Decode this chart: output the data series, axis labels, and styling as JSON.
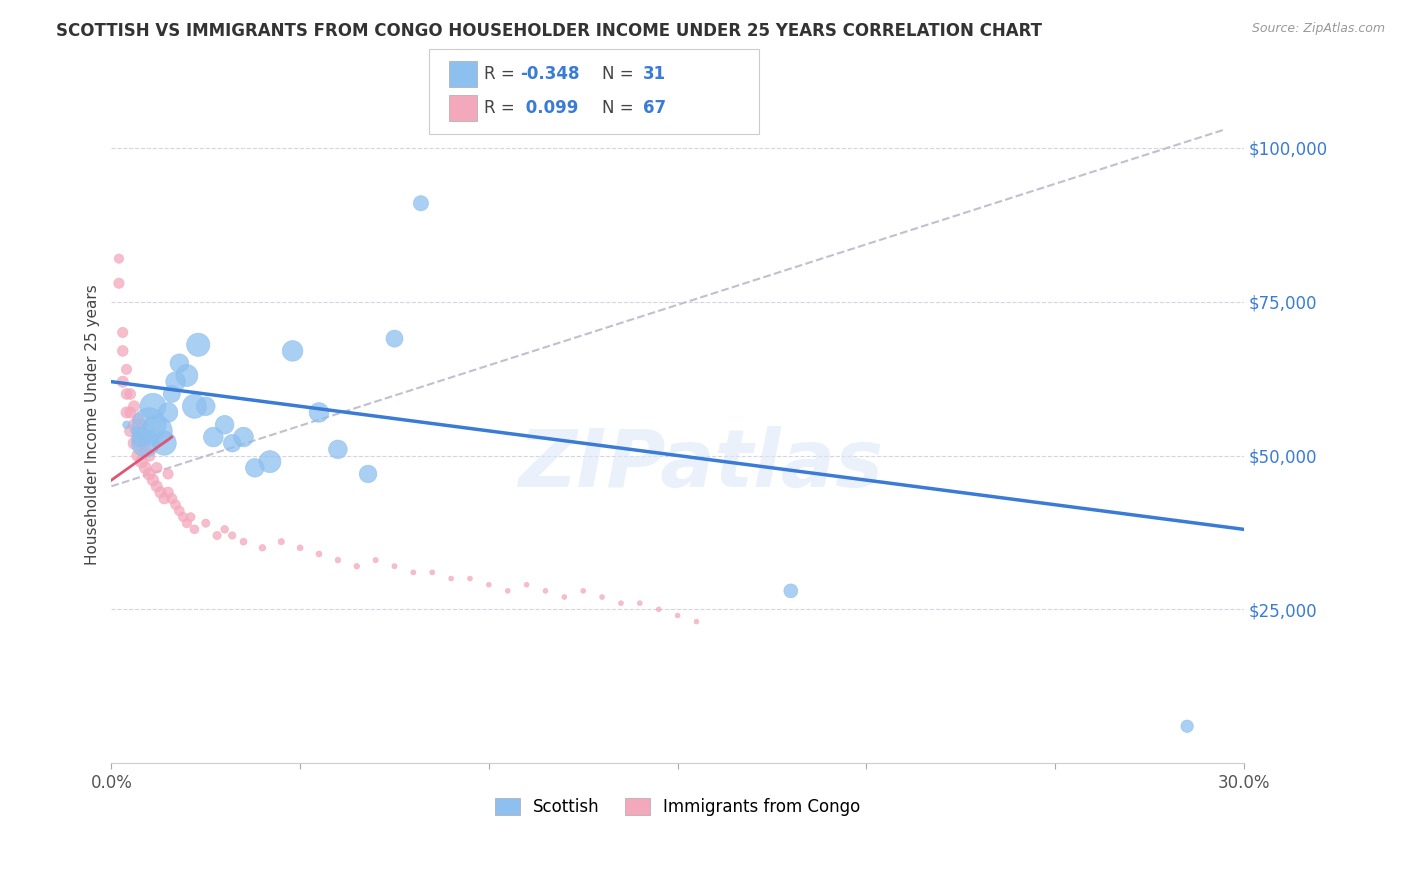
{
  "title": "SCOTTISH VS IMMIGRANTS FROM CONGO HOUSEHOLDER INCOME UNDER 25 YEARS CORRELATION CHART",
  "source": "Source: ZipAtlas.com",
  "ylabel": "Householder Income Under 25 years",
  "ytick_labels": [
    "$25,000",
    "$50,000",
    "$75,000",
    "$100,000"
  ],
  "ytick_values": [
    25000,
    50000,
    75000,
    100000
  ],
  "xlim": [
    0.0,
    0.3
  ],
  "ylim": [
    0,
    110000
  ],
  "watermark": "ZIPatlas",
  "scottish_color": "#8dbfef",
  "congo_color": "#f4a8bc",
  "scottish_line_color": "#3a7bd5",
  "congo_line_color": "#e05575",
  "dashed_line_color": "#c0c0d0",
  "scottish_scatter_x": [
    0.004,
    0.006,
    0.008,
    0.009,
    0.01,
    0.011,
    0.012,
    0.014,
    0.015,
    0.016,
    0.017,
    0.018,
    0.02,
    0.022,
    0.023,
    0.025,
    0.027,
    0.03,
    0.032,
    0.035,
    0.038,
    0.042,
    0.048,
    0.055,
    0.06,
    0.068,
    0.075,
    0.082,
    0.18,
    0.285
  ],
  "scottish_scatter_y": [
    55000,
    54000,
    53000,
    52000,
    55000,
    58000,
    54000,
    52000,
    57000,
    60000,
    62000,
    65000,
    63000,
    58000,
    68000,
    58000,
    53000,
    55000,
    52000,
    53000,
    48000,
    49000,
    67000,
    57000,
    51000,
    47000,
    69000,
    91000,
    28000,
    6000
  ],
  "scottish_scatter_size": [
    30,
    25,
    200,
    400,
    600,
    350,
    500,
    300,
    200,
    150,
    200,
    180,
    250,
    300,
    280,
    180,
    200,
    180,
    160,
    200,
    180,
    250,
    220,
    200,
    180,
    160,
    150,
    120,
    100,
    80
  ],
  "congo_scatter_x": [
    0.002,
    0.002,
    0.003,
    0.003,
    0.003,
    0.004,
    0.004,
    0.004,
    0.005,
    0.005,
    0.005,
    0.006,
    0.006,
    0.006,
    0.007,
    0.007,
    0.007,
    0.008,
    0.008,
    0.008,
    0.009,
    0.009,
    0.01,
    0.01,
    0.011,
    0.012,
    0.012,
    0.013,
    0.014,
    0.015,
    0.015,
    0.016,
    0.017,
    0.018,
    0.019,
    0.02,
    0.021,
    0.022,
    0.025,
    0.028,
    0.03,
    0.032,
    0.035,
    0.04,
    0.045,
    0.05,
    0.055,
    0.06,
    0.065,
    0.07,
    0.075,
    0.08,
    0.085,
    0.09,
    0.095,
    0.1,
    0.105,
    0.11,
    0.115,
    0.12,
    0.125,
    0.13,
    0.135,
    0.14,
    0.145,
    0.15,
    0.155
  ],
  "congo_scatter_y": [
    78000,
    82000,
    62000,
    67000,
    70000,
    57000,
    60000,
    64000,
    54000,
    57000,
    60000,
    52000,
    55000,
    58000,
    50000,
    53000,
    56000,
    49000,
    52000,
    55000,
    48000,
    51000,
    47000,
    50000,
    46000,
    45000,
    48000,
    44000,
    43000,
    44000,
    47000,
    43000,
    42000,
    41000,
    40000,
    39000,
    40000,
    38000,
    39000,
    37000,
    38000,
    37000,
    36000,
    35000,
    36000,
    35000,
    34000,
    33000,
    32000,
    33000,
    32000,
    31000,
    31000,
    30000,
    30000,
    29000,
    28000,
    29000,
    28000,
    27000,
    28000,
    27000,
    26000,
    26000,
    25000,
    24000,
    23000
  ],
  "congo_scatter_size": [
    55,
    45,
    65,
    60,
    55,
    65,
    60,
    55,
    70,
    65,
    60,
    75,
    70,
    65,
    75,
    70,
    65,
    80,
    75,
    70,
    75,
    70,
    75,
    70,
    70,
    65,
    60,
    65,
    60,
    60,
    55,
    55,
    50,
    50,
    45,
    45,
    40,
    40,
    35,
    35,
    30,
    28,
    25,
    22,
    20,
    18,
    18,
    16,
    16,
    14,
    14,
    13,
    13,
    12,
    12,
    12,
    12,
    12,
    12,
    12,
    12,
    12,
    12,
    12,
    12,
    12,
    12
  ],
  "scottish_trend_x": [
    0.0,
    0.3
  ],
  "scottish_trend_y": [
    62000,
    38000
  ],
  "congo_trend_x": [
    0.0,
    0.016
  ],
  "congo_trend_y": [
    46000,
    53000
  ],
  "dashed_trend_x": [
    0.0,
    0.295
  ],
  "dashed_trend_y": [
    45000,
    103000
  ]
}
